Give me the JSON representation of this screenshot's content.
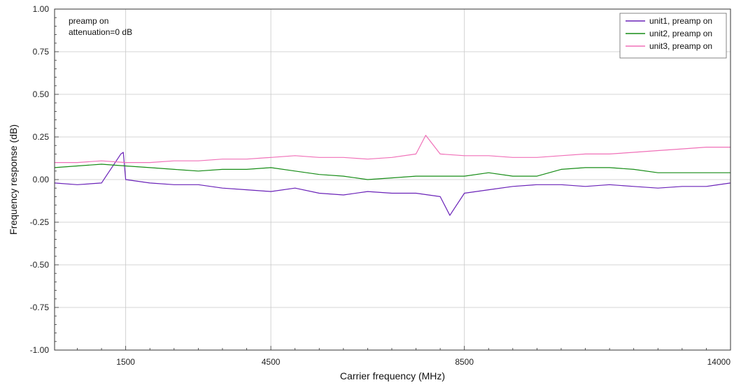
{
  "chart_data": {
    "type": "line",
    "xlabel": "Carrier frequency (MHz)",
    "ylabel": "Frequency response (dB)",
    "xlim": [
      30,
      14000
    ],
    "ylim": [
      -1.0,
      1.0
    ],
    "x_tick_labels": [
      "1500",
      "4500",
      "8500",
      "14000"
    ],
    "x_ticks": [
      1500,
      4500,
      8500,
      14000
    ],
    "y_tick_labels": [
      "1.00",
      "0.75",
      "0.50",
      "0.25",
      "0.00",
      "-0.25",
      "-0.50",
      "-0.75",
      "-1.00"
    ],
    "y_ticks": [
      1.0,
      0.75,
      0.5,
      0.25,
      0.0,
      -0.25,
      -0.5,
      -0.75,
      -1.0
    ],
    "grid": true,
    "legend_position": "top-right",
    "annotations": [
      "preamp on",
      "attenuation=0 dB"
    ],
    "series": [
      {
        "name": "unit1, preamp on",
        "color": "#6a22b8",
        "points": [
          [
            30,
            -0.02
          ],
          [
            500,
            -0.03
          ],
          [
            1000,
            -0.02
          ],
          [
            1400,
            0.15
          ],
          [
            1450,
            0.16
          ],
          [
            1500,
            0.0
          ],
          [
            2000,
            -0.02
          ],
          [
            2500,
            -0.03
          ],
          [
            3000,
            -0.03
          ],
          [
            3500,
            -0.05
          ],
          [
            4000,
            -0.06
          ],
          [
            4500,
            -0.07
          ],
          [
            5000,
            -0.05
          ],
          [
            5500,
            -0.08
          ],
          [
            6000,
            -0.09
          ],
          [
            6500,
            -0.07
          ],
          [
            7000,
            -0.08
          ],
          [
            7500,
            -0.08
          ],
          [
            8000,
            -0.1
          ],
          [
            8200,
            -0.21
          ],
          [
            8500,
            -0.08
          ],
          [
            9000,
            -0.06
          ],
          [
            9500,
            -0.04
          ],
          [
            10000,
            -0.03
          ],
          [
            10500,
            -0.03
          ],
          [
            11000,
            -0.04
          ],
          [
            11500,
            -0.03
          ],
          [
            12000,
            -0.04
          ],
          [
            12500,
            -0.05
          ],
          [
            13000,
            -0.04
          ],
          [
            13500,
            -0.04
          ],
          [
            14000,
            -0.02
          ]
        ]
      },
      {
        "name": "unit2, preamp on",
        "color": "#168c16",
        "points": [
          [
            30,
            0.07
          ],
          [
            500,
            0.08
          ],
          [
            1000,
            0.09
          ],
          [
            1500,
            0.08
          ],
          [
            2000,
            0.07
          ],
          [
            2500,
            0.06
          ],
          [
            3000,
            0.05
          ],
          [
            3500,
            0.06
          ],
          [
            4000,
            0.06
          ],
          [
            4500,
            0.07
          ],
          [
            5000,
            0.05
          ],
          [
            5500,
            0.03
          ],
          [
            6000,
            0.02
          ],
          [
            6500,
            0.0
          ],
          [
            7000,
            0.01
          ],
          [
            7500,
            0.02
          ],
          [
            8000,
            0.02
          ],
          [
            8500,
            0.02
          ],
          [
            9000,
            0.04
          ],
          [
            9500,
            0.02
          ],
          [
            10000,
            0.02
          ],
          [
            10500,
            0.06
          ],
          [
            11000,
            0.07
          ],
          [
            11500,
            0.07
          ],
          [
            12000,
            0.06
          ],
          [
            12500,
            0.04
          ],
          [
            13000,
            0.04
          ],
          [
            13500,
            0.04
          ],
          [
            14000,
            0.04
          ]
        ]
      },
      {
        "name": "unit3, preamp on",
        "color": "#f070b8",
        "points": [
          [
            30,
            0.1
          ],
          [
            500,
            0.1
          ],
          [
            1000,
            0.11
          ],
          [
            1500,
            0.1
          ],
          [
            2000,
            0.1
          ],
          [
            2500,
            0.11
          ],
          [
            3000,
            0.11
          ],
          [
            3500,
            0.12
          ],
          [
            4000,
            0.12
          ],
          [
            4500,
            0.13
          ],
          [
            5000,
            0.14
          ],
          [
            5500,
            0.13
          ],
          [
            6000,
            0.13
          ],
          [
            6500,
            0.12
          ],
          [
            7000,
            0.13
          ],
          [
            7500,
            0.15
          ],
          [
            7700,
            0.26
          ],
          [
            8000,
            0.15
          ],
          [
            8500,
            0.14
          ],
          [
            9000,
            0.14
          ],
          [
            9500,
            0.13
          ],
          [
            10000,
            0.13
          ],
          [
            10500,
            0.14
          ],
          [
            11000,
            0.15
          ],
          [
            11500,
            0.15
          ],
          [
            12000,
            0.16
          ],
          [
            12500,
            0.17
          ],
          [
            13000,
            0.18
          ],
          [
            13500,
            0.19
          ],
          [
            14000,
            0.19
          ]
        ]
      }
    ]
  }
}
